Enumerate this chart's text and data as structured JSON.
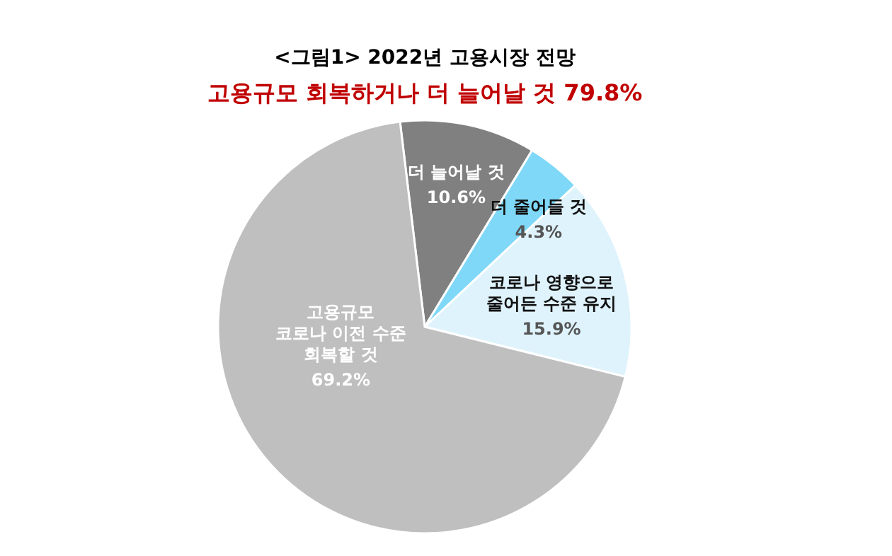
{
  "chart_data": {
    "type": "pie",
    "title": "<그림1> 2022년 고용시장 전망",
    "subtitle": "고용규모 회복하거나 더 늘어날 것 79.8%",
    "categories": [
      "더 늘어날 것",
      "더 줄어들 것",
      "코로나 영향으로\n줄어든 수준 유지",
      "고용규모\n코로나 이전 수준\n회복할 것"
    ],
    "values": [
      10.6,
      4.3,
      15.9,
      69.2
    ],
    "colors": [
      "#808080",
      "#7fd8f8",
      "#dff3fc",
      "#bfbfbf"
    ],
    "value_labels": [
      "10.6%",
      "4.3%",
      "15.9%",
      "69.2%"
    ],
    "legend": false
  }
}
